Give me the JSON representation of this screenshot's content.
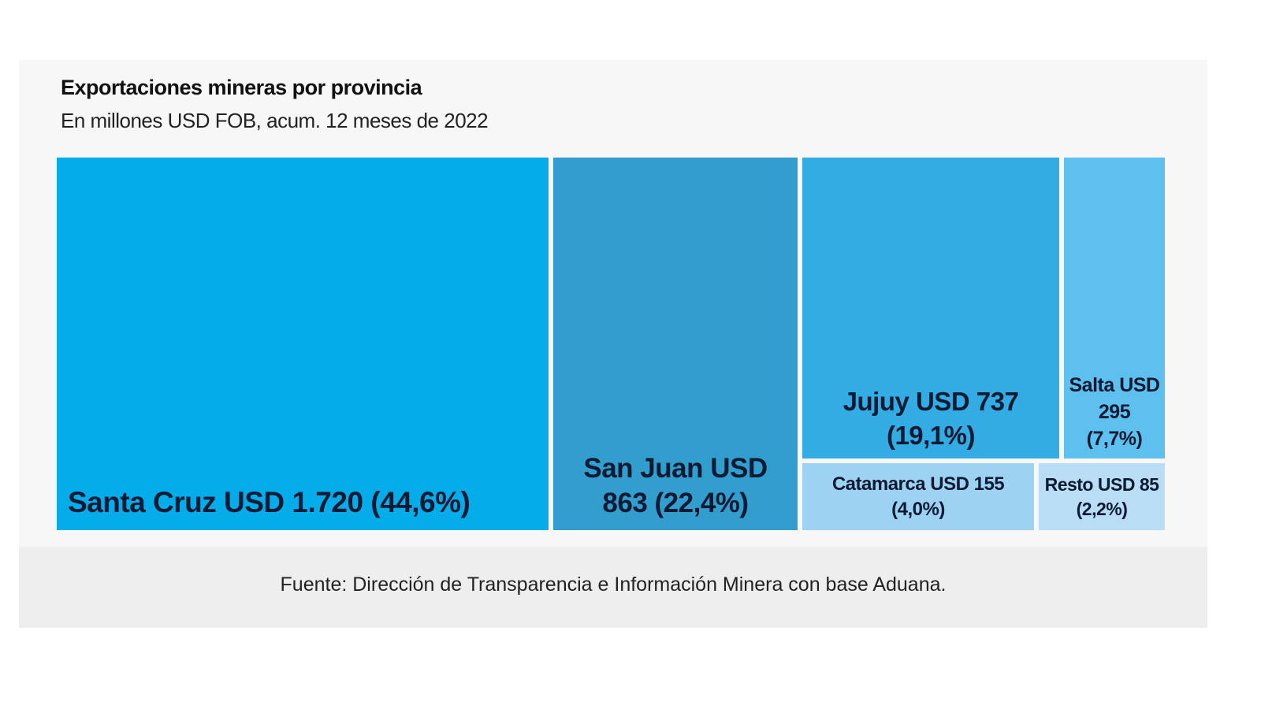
{
  "chart_data": {
    "type": "treemap",
    "title": "Exportaciones mineras por provincia",
    "subtitle": "En millones USD FOB, acum. 12 meses de 2022",
    "items": [
      {
        "name": "Santa Cruz",
        "value": 1720,
        "share": 44.6,
        "label": "Santa Cruz USD 1.720 (44,6%)",
        "color": "#04adea"
      },
      {
        "name": "San Juan",
        "value": 863,
        "share": 22.4,
        "label": "San Juan USD 863 (22,4%)",
        "color": "#329ece"
      },
      {
        "name": "Jujuy",
        "value": 737,
        "share": 19.1,
        "label": "Jujuy USD 737 (19,1%)",
        "color": "#32ace2"
      },
      {
        "name": "Salta",
        "value": 295,
        "share": 7.7,
        "label": "Salta USD 295 (7,7%)",
        "color": "#5ec0ee"
      },
      {
        "name": "Catamarca",
        "value": 155,
        "share": 4.0,
        "label": "Catamarca USD 155 (4,0%)",
        "color": "#9ed2f2"
      },
      {
        "name": "Resto",
        "value": 85,
        "share": 2.2,
        "label": "Resto USD 85 (2,2%)",
        "color": "#b8ddf5"
      }
    ],
    "source": "Fuente: Dirección de Transparencia e Información Minera con base Aduana."
  }
}
